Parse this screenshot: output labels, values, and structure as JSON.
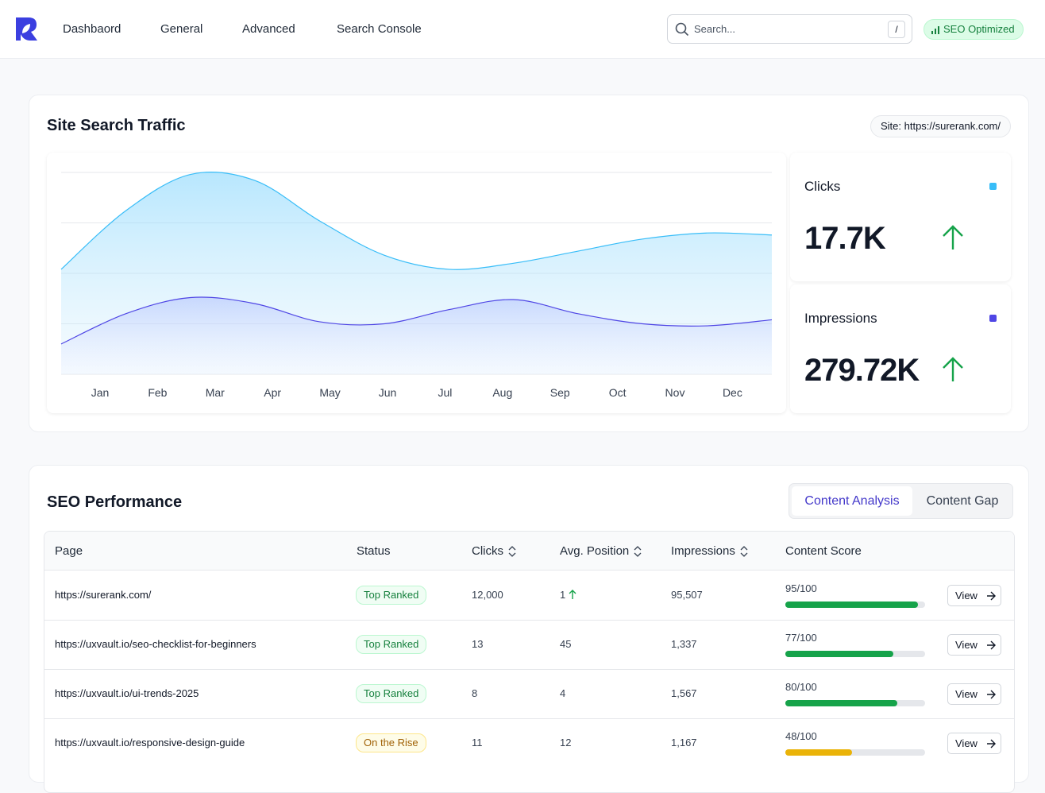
{
  "nav": {
    "items": [
      "Dashbaord",
      "General",
      "Advanced",
      "Search Console"
    ],
    "search_placeholder": "Search...",
    "shortcut": "/",
    "badge": "SEO Optimized"
  },
  "traffic": {
    "title": "Site Search Traffic",
    "site": "Site: https://surerank.com/",
    "chart_data": {
      "type": "line",
      "area": true,
      "grid": true,
      "categories": [
        "Jan",
        "Feb",
        "Mar",
        "Apr",
        "May",
        "Jun",
        "Jul",
        "Aug",
        "Sep",
        "Oct",
        "Nov",
        "Dec"
      ],
      "ylim": [
        0,
        100
      ],
      "yticks": [
        0,
        25,
        50,
        75,
        100
      ],
      "series": [
        {
          "name": "Clicks",
          "color": "#38bdf8",
          "values": [
            52,
            81,
            99,
            96,
            76,
            59,
            52,
            55,
            61,
            67,
            70,
            69
          ]
        },
        {
          "name": "Impressions",
          "color": "#4f46e5",
          "values": [
            15,
            30,
            38,
            35,
            26,
            25,
            32,
            37,
            30,
            25,
            24,
            27
          ]
        }
      ]
    },
    "totals": [
      "17.7K",
      "279.72K"
    ]
  },
  "performance": {
    "title": "SEO Performance",
    "tabs": [
      "Content Analysis",
      "Content Gap"
    ],
    "table": {
      "columns": [
        "Page",
        "Status",
        "Clicks",
        "Avg. Position",
        "Impressions",
        "Content Score"
      ],
      "rows": [
        {
          "page": "https://surerank.com/",
          "status": "Top Ranked",
          "clicks": "12,000",
          "position": "1",
          "trend": "up",
          "impressions": "95,507",
          "score": 95,
          "score_label": "95/100",
          "action": "View"
        },
        {
          "page": "https://uxvault.io/seo-checklist-for-beginners",
          "status": "Top Ranked",
          "clicks": "13",
          "position": "45",
          "impressions": "1,337",
          "score": 77,
          "score_label": "77/100",
          "action": "View"
        },
        {
          "page": "https://uxvault.io/ui-trends-2025",
          "status": "Top Ranked",
          "clicks": "8",
          "position": "4",
          "impressions": "1,567",
          "score": 80,
          "score_label": "80/100",
          "action": "View"
        },
        {
          "page": "https://uxvault.io/responsive-design-guide",
          "status": "On the Rise",
          "clicks": "11",
          "position": "12",
          "impressions": "1,167",
          "score": 48,
          "score_label": "48/100",
          "action": "View"
        }
      ]
    }
  }
}
